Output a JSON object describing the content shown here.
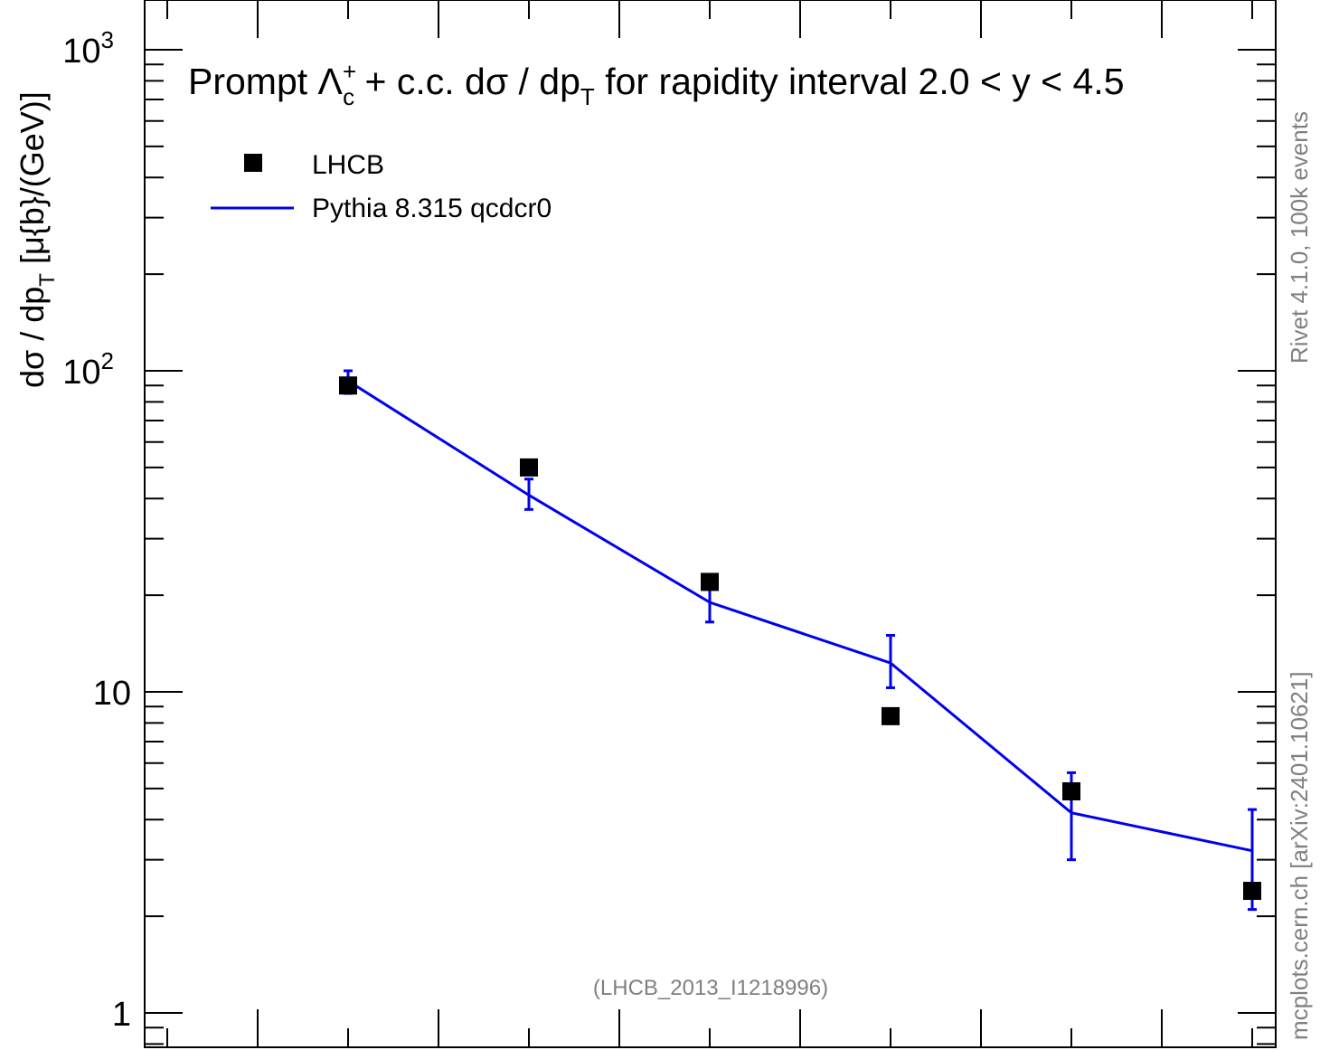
{
  "chart_data": {
    "type": "scatter",
    "title": {
      "prefix": "Prompt ",
      "lambda": "Λ",
      "lambda_sup": "+",
      "lambda_sub": "c",
      "mid": " + c.c.  dσ / dp",
      "mid_sub": "T",
      "suffix": " for rapidity interval 2.0 < y < 4.5"
    },
    "ylabel": {
      "main": "dσ / dp",
      "sub": "T",
      "unit": " [μ{b}/(GeV)]"
    },
    "y_scale": "log",
    "ylim": [
      0.9,
      1150
    ],
    "xlim": [
      0,
      8
    ],
    "y_ticks": [
      {
        "value": 1,
        "base": "1",
        "exp": ""
      },
      {
        "value": 10,
        "base": "10",
        "exp": ""
      },
      {
        "value": 100,
        "base": "10",
        "exp": "2"
      },
      {
        "value": 1000,
        "base": "10",
        "exp": "3"
      }
    ],
    "legend": {
      "placement": "top-left",
      "entries": [
        {
          "label": "LHCB",
          "marker": "square",
          "color": "#000000"
        },
        {
          "label": "Pythia 8.315 qcdcr0",
          "marker": "line",
          "color": "#0000ee"
        }
      ]
    },
    "series": [
      {
        "name": "LHCB",
        "x": [
          1.5,
          2.5,
          3.5,
          4.5,
          5.5,
          6.5
        ],
        "y": [
          90,
          50,
          22,
          8.4,
          4.9,
          2.4
        ]
      },
      {
        "name": "Pythia 8.315 qcdcr0",
        "x": [
          1.5,
          2.5,
          3.5,
          4.5,
          5.5,
          6.5
        ],
        "y": [
          93,
          41,
          19,
          12.3,
          4.2,
          3.2
        ],
        "err_low": [
          85,
          37,
          16.5,
          10.3,
          3.0,
          2.1
        ],
        "err_high": [
          100,
          46,
          22,
          15,
          5.6,
          4.3
        ]
      }
    ],
    "annotation": "(LHCB_2013_I1218996)",
    "side_label_top": "Rivet 4.1.0,  100k events",
    "side_label_bottom": "mcplots.cern.ch [arXiv:2401.10621]",
    "grid": false
  }
}
